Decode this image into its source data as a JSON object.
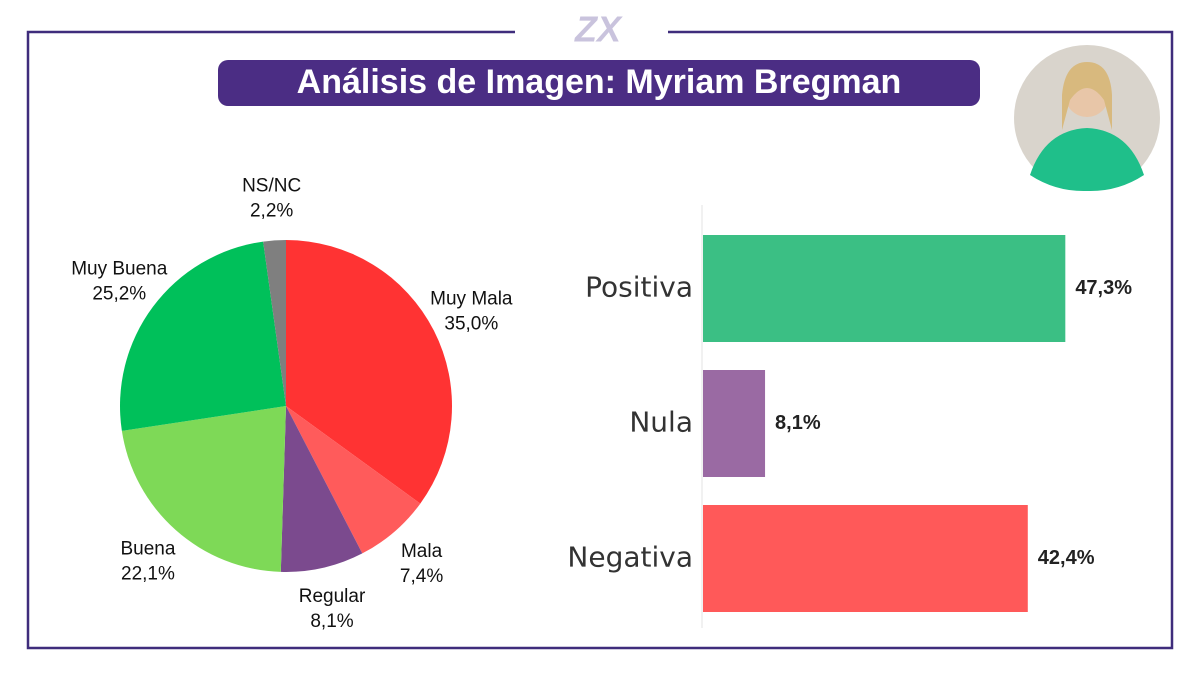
{
  "logo": "ZX",
  "title": "Análisis de Imagen: Myriam Bregman",
  "chart_data": [
    {
      "type": "pie",
      "categories": [
        "Muy Mala",
        "Mala",
        "Regular",
        "Buena",
        "Muy Buena",
        "NS/NC"
      ],
      "values": [
        35.0,
        7.4,
        8.1,
        22.1,
        25.2,
        2.2
      ],
      "value_labels": [
        "35,0%",
        "7,4%",
        "8,1%",
        "22,1%",
        "25,2%",
        "2,2%"
      ],
      "colors": [
        "#ff3333",
        "#ff5b5b",
        "#7b4a8e",
        "#7ed957",
        "#00c05a",
        "#7f7f7f"
      ]
    },
    {
      "type": "hbar",
      "categories": [
        "Positiva",
        "Nula",
        "Negativa"
      ],
      "values": [
        47.3,
        8.1,
        42.4
      ],
      "value_labels": [
        "47,3%",
        "8,1%",
        "42,4%"
      ],
      "colors": [
        "#3bbf84",
        "#9a6aa3",
        "#ff5959"
      ],
      "xlim": [
        0,
        50
      ]
    }
  ]
}
